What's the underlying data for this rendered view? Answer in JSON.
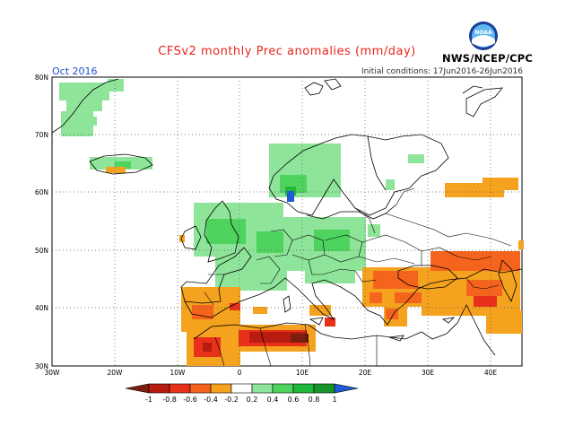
{
  "title": "CFSv2 monthly Prec anomalies (mm/day)",
  "month": "Oct 2016",
  "initial_conditions": "Initial conditions: 17Jun2016-26Jun2016",
  "agency": "NWS/NCEP/CPC",
  "logo_text": "NOAA",
  "lat_labels": [
    "80N",
    "70N",
    "60N",
    "50N",
    "40N",
    "30N"
  ],
  "lon_labels": [
    "30W",
    "20W",
    "10W",
    "0",
    "10E",
    "20E",
    "30E",
    "40E"
  ],
  "colorbar": {
    "labels": [
      "-1",
      "-0.8",
      "-0.6",
      "-0.4",
      "-0.2",
      "0.2",
      "0.4",
      "0.6",
      "0.8",
      "1"
    ],
    "colors": [
      "#7a1f0e",
      "#b81b0f",
      "#e8301a",
      "#f5641c",
      "#f5a21e",
      "#ffffff",
      "#8ee59a",
      "#4fd35f",
      "#1fb83a",
      "#16962a",
      "#1f5bd6"
    ]
  }
}
